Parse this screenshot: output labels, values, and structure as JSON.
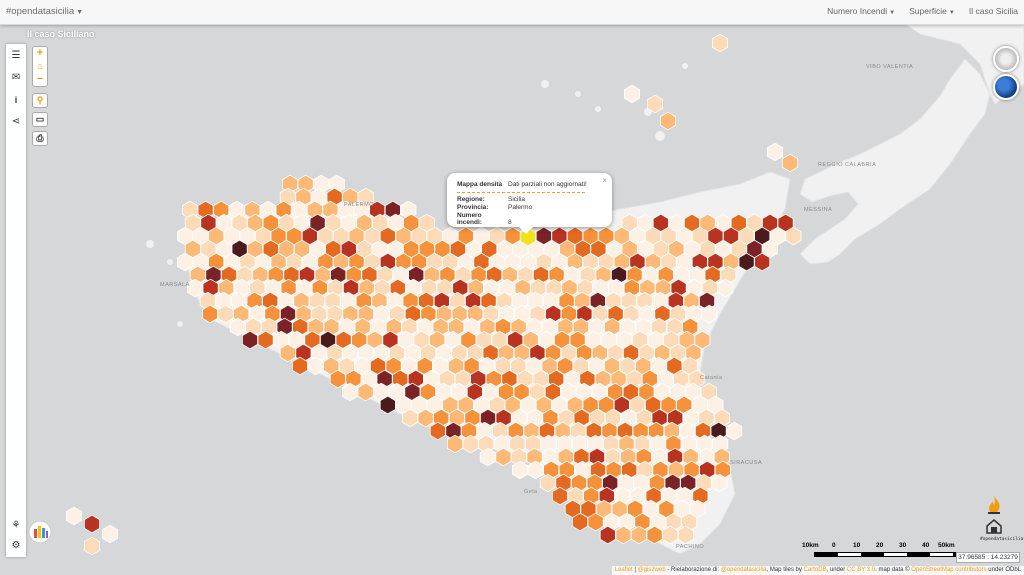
{
  "navbar": {
    "brand": "#opendatasicilia",
    "menu": [
      {
        "label": "Numero Incendi",
        "dropdown": true
      },
      {
        "label": "Superficie",
        "dropdown": true
      },
      {
        "label": "Il caso Sicilia",
        "dropdown": false
      }
    ]
  },
  "map": {
    "title": "Il caso Siciliano",
    "zoom_in": "+",
    "zoom_out": "−",
    "place_labels": [
      "VIBO VALENTIA",
      "MARSALA",
      "REGGIO CALABRIA",
      "MESSINA",
      "Catania",
      "Gela",
      "SIRACUSA",
      "PACHINO",
      "PALERMO"
    ]
  },
  "popup": {
    "title_key": "Mappa densità",
    "title_value": "Dati parziali non aggiornati!",
    "rows": [
      {
        "key": "Regione:",
        "value": "Sicilia"
      },
      {
        "key": "Provincia:",
        "value": "Palermo"
      },
      {
        "key": "Numero incendi:",
        "value": "8"
      }
    ],
    "close": "×"
  },
  "scale": {
    "labels": [
      "10km",
      "0",
      "10",
      "20",
      "30",
      "40",
      "50km"
    ]
  },
  "coords": "37.96585 : 14.23279",
  "attribution": {
    "leaflet": "Leaflet",
    "author": "@gis2web",
    "text1": " - Rielaborazione di: ",
    "author2": "@opendatasicilia",
    "text2": ", Map tiles by ",
    "carto": "CartoDB",
    "text3": ", under ",
    "license": "CC BY 3.0",
    "text4": ". map data © ",
    "osm": "OpenStreetMap contributors",
    "text5": " under ODbL"
  },
  "logo_text": "#opendatasicilia",
  "colors": {
    "c0": "#fdf1e6",
    "c1": "#fddbb8",
    "c2": "#fdb975",
    "c3": "#f5923b",
    "c4": "#e46a22",
    "c5": "#b83320",
    "c6": "#7a2226",
    "c7": "#4a1a1c",
    "highlight": "#f2e21a"
  }
}
